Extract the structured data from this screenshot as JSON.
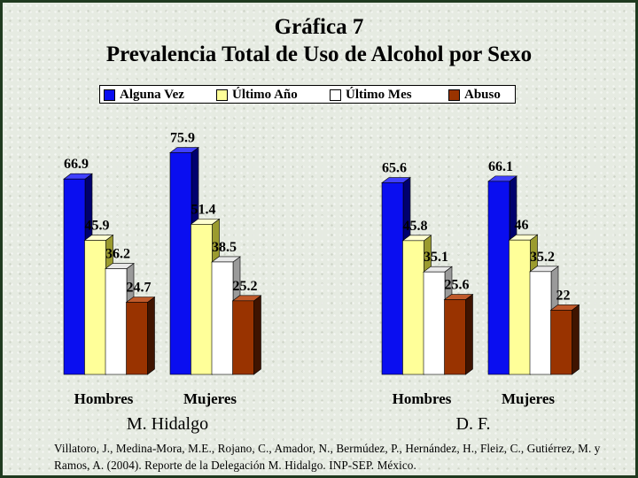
{
  "title": "Gráfica 7",
  "subtitle": "Prevalencia Total de Uso de Alcohol por Sexo",
  "legend": [
    {
      "label": "Alguna Vez",
      "color": "#0a0ef0"
    },
    {
      "label": "Último Año",
      "color": "#ffff99"
    },
    {
      "label": "Último Mes",
      "color": "#ffffff"
    },
    {
      "label": "Abuso",
      "color": "#993300"
    }
  ],
  "groups": [
    {
      "label": "M. Hidalgo"
    },
    {
      "label": "D. F."
    }
  ],
  "chart_data": {
    "type": "bar",
    "title": "Gráfica 7",
    "subtitle": "Prevalencia Total de Uso de Alcohol por Sexo",
    "categories": [
      "Hombres",
      "Mujeres",
      "Hombres",
      "Mujeres"
    ],
    "category_groups": [
      "M. Hidalgo",
      "M. Hidalgo",
      "D. F.",
      "D. F."
    ],
    "series": [
      {
        "name": "Alguna Vez",
        "values": [
          66.9,
          75.9,
          65.6,
          66.1
        ],
        "labels": [
          "66.9",
          "75.9",
          "65.6",
          "66.1"
        ]
      },
      {
        "name": "Último Año",
        "values": [
          45.9,
          51.4,
          45.8,
          46
        ],
        "labels": [
          "45.9",
          "51.4",
          "45.8",
          "46"
        ]
      },
      {
        "name": "Último Mes",
        "values": [
          36.2,
          38.5,
          35.1,
          35.2
        ],
        "labels": [
          "36.2",
          "38.5",
          "35.1",
          "35.2"
        ]
      },
      {
        "name": "Abuso",
        "values": [
          24.7,
          25.2,
          25.6,
          22
        ],
        "labels": [
          "24.7",
          "25.2",
          "25.6",
          "22"
        ]
      }
    ],
    "colors": [
      "#0a0ef0",
      "#ffff99",
      "#ffffff",
      "#993300"
    ],
    "ylim": [
      0,
      80
    ],
    "grid": false,
    "legend_position": "top",
    "three_d": true
  },
  "source": "Villatoro, J., Medina-Mora, M.E., Rojano, C., Amador, N., Bermúdez, P., Hernández, H., Fleiz, C., Gutiérrez, M. y Ramos, A. (2004). Reporte de la Delegación M. Hidalgo. INP-SEP. México."
}
